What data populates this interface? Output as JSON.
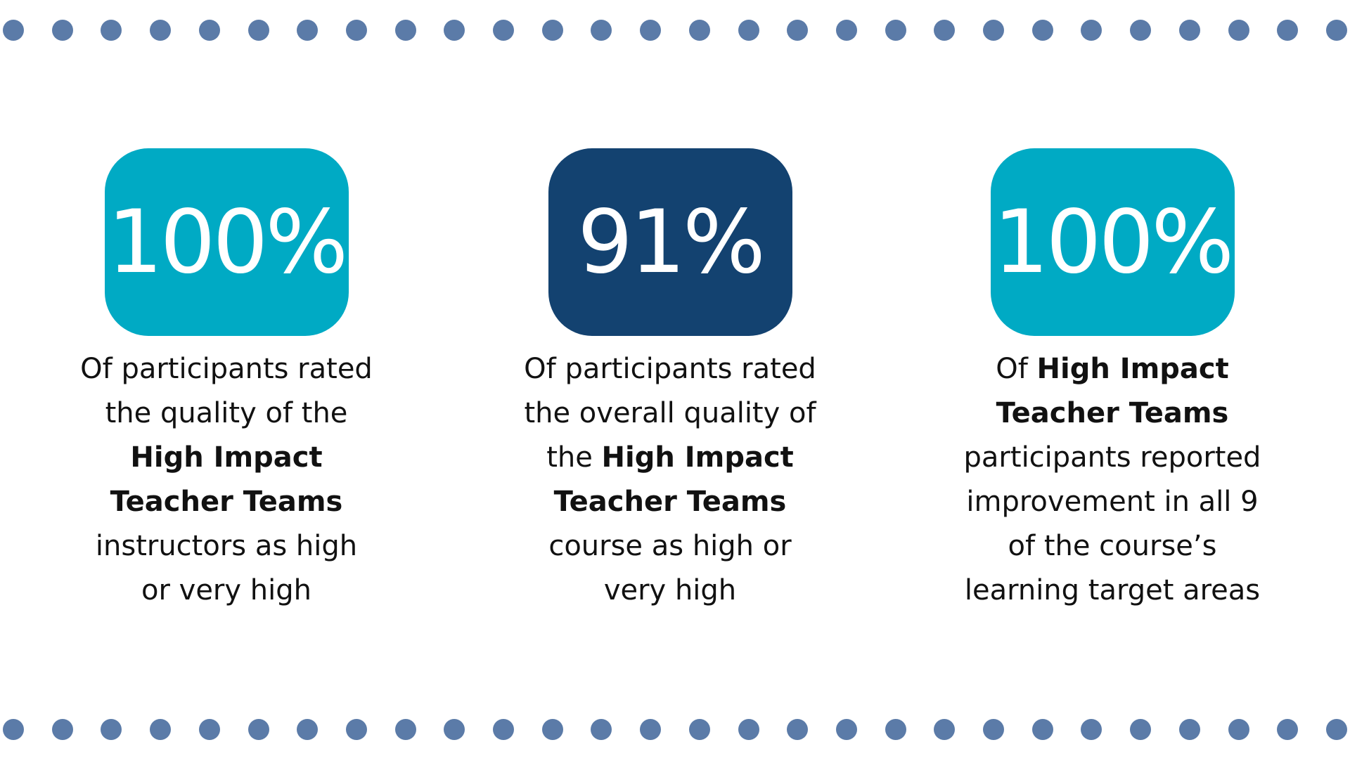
{
  "colors": {
    "dot": "#5b7ba8",
    "teal": "#00aac4",
    "navy": "#134270"
  },
  "dots": {
    "top_count": 28,
    "bottom_count": 28
  },
  "stats": [
    {
      "value": "100%",
      "badge_color": "#00aac4",
      "desc": {
        "l1": "Of participants rated",
        "l2": "the quality of the",
        "l3": "High Impact",
        "l4": "Teacher Teams",
        "l5": "instructors as high",
        "l6": "or very high"
      }
    },
    {
      "value": "91%",
      "badge_color": "#134270",
      "desc": {
        "l1": "Of participants rated",
        "l2": "the overall quality of",
        "l3a": "the ",
        "l3b": "High Impact",
        "l4": "Teacher Teams",
        "l5": "course as high or",
        "l6": "very high"
      }
    },
    {
      "value": "100%",
      "badge_color": "#00aac4",
      "desc": {
        "l1a": "Of ",
        "l1b": "High Impact",
        "l2": "Teacher Teams",
        "l3": "participants reported",
        "l4": "improvement in all 9",
        "l5": "of the course’s",
        "l6": "learning target areas"
      }
    }
  ]
}
